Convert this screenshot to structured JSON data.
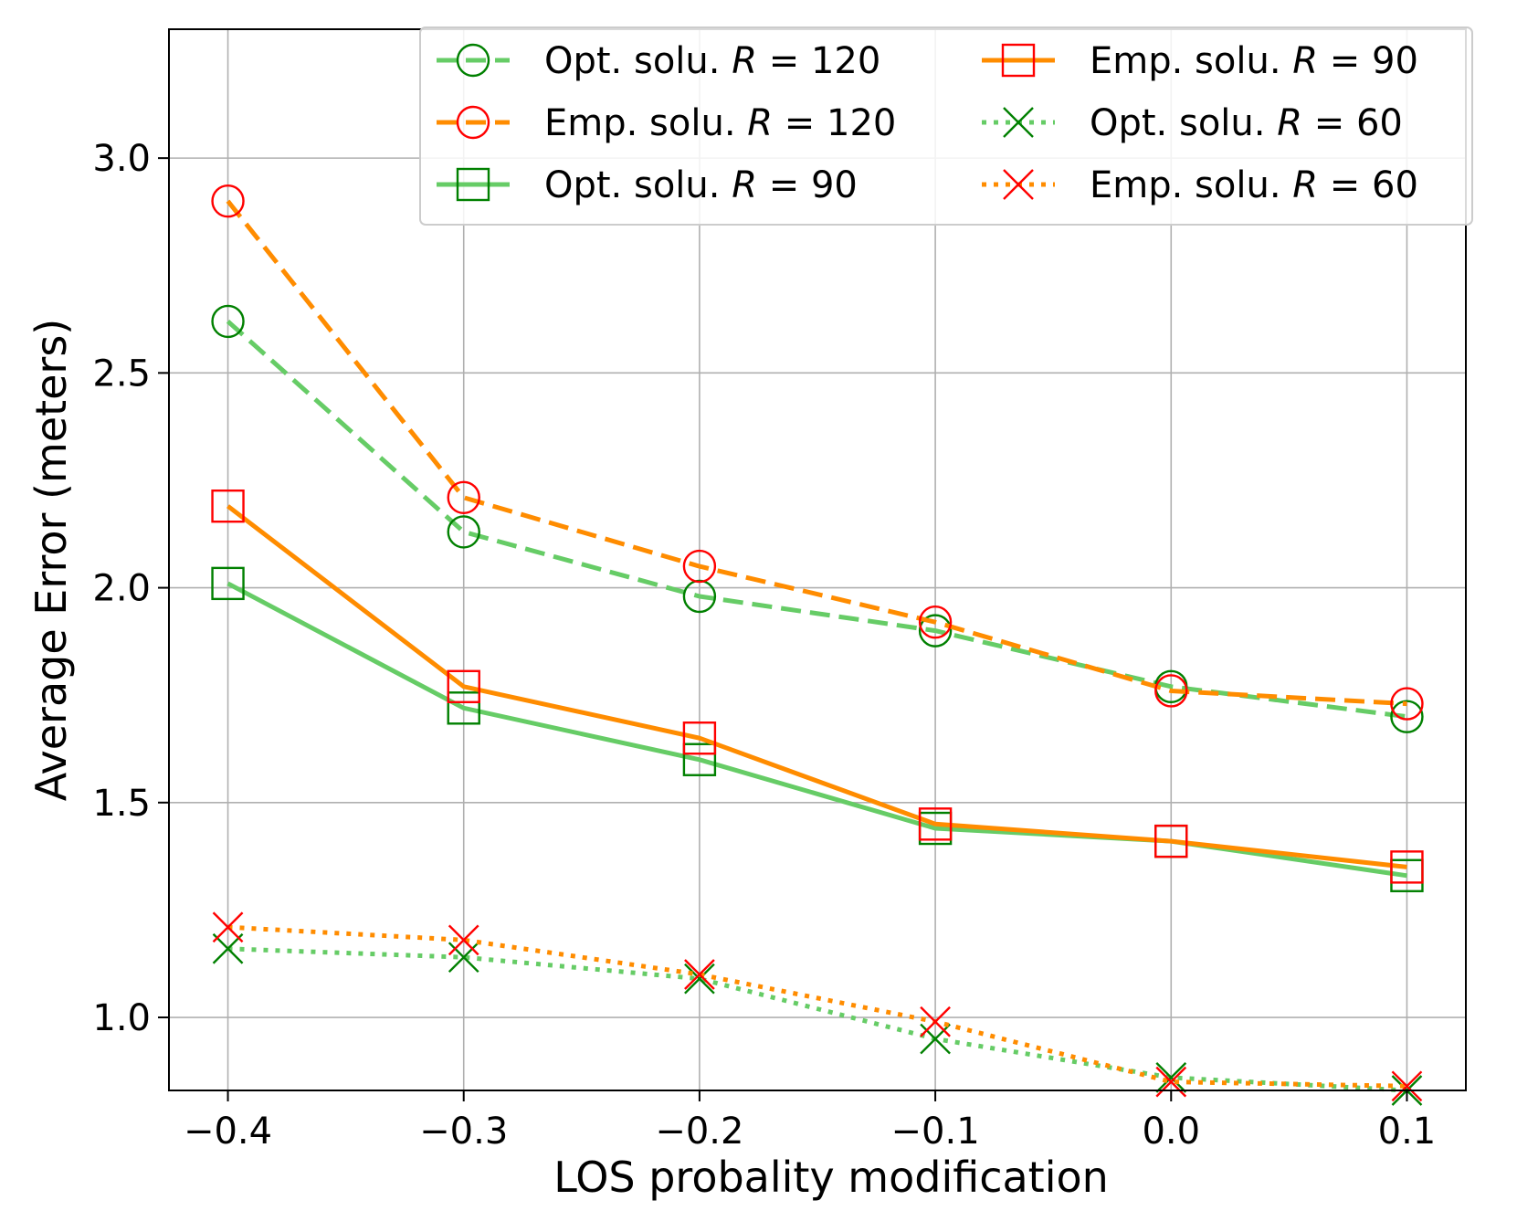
{
  "chart_data": {
    "type": "line",
    "title": "",
    "xlabel": "LOS probality modification",
    "ylabel": "Average Error (meters)",
    "x": [
      -0.4,
      -0.3,
      -0.2,
      -0.1,
      0.0,
      0.1
    ],
    "x_tick_labels": [
      "−0.4",
      "−0.3",
      "−0.2",
      "−0.1",
      "0.0",
      "0.1"
    ],
    "y_ticks": [
      1.0,
      1.5,
      2.0,
      2.5,
      3.0
    ],
    "y_tick_labels": [
      "1.0",
      "1.5",
      "2.0",
      "2.5",
      "3.0"
    ],
    "xlim": [
      -0.425,
      0.125
    ],
    "ylim": [
      0.83,
      3.3
    ],
    "grid": true,
    "legend_position": "top-right",
    "series": [
      {
        "name_prefix": "Opt. solu. ",
        "name_var": "R",
        "name_value": "120",
        "values": [
          2.62,
          2.13,
          1.98,
          1.9,
          1.77,
          1.7
        ],
        "line_color": "#66cc66",
        "marker_color": "#008000",
        "dash": "dashed",
        "marker": "circle"
      },
      {
        "name_prefix": "Emp. solu. ",
        "name_var": "R",
        "name_value": "120",
        "values": [
          2.9,
          2.21,
          2.05,
          1.92,
          1.76,
          1.73
        ],
        "line_color": "#ff8c00",
        "marker_color": "#ff0000",
        "dash": "dashed",
        "marker": "circle"
      },
      {
        "name_prefix": "Opt. solu. ",
        "name_var": "R",
        "name_value": "90",
        "values": [
          2.01,
          1.72,
          1.6,
          1.44,
          1.41,
          1.33
        ],
        "line_color": "#66cc66",
        "marker_color": "#008000",
        "dash": "solid",
        "marker": "square"
      },
      {
        "name_prefix": "Emp. solu. ",
        "name_var": "R",
        "name_value": "90",
        "values": [
          2.19,
          1.77,
          1.65,
          1.45,
          1.41,
          1.35
        ],
        "line_color": "#ff8c00",
        "marker_color": "#ff0000",
        "dash": "solid",
        "marker": "square"
      },
      {
        "name_prefix": "Opt. solu. ",
        "name_var": "R",
        "name_value": "60",
        "values": [
          1.16,
          1.14,
          1.09,
          0.95,
          0.86,
          0.83
        ],
        "line_color": "#66cc66",
        "marker_color": "#008000",
        "dash": "dotted",
        "marker": "x"
      },
      {
        "name_prefix": "Emp. solu. ",
        "name_var": "R",
        "name_value": "60",
        "values": [
          1.21,
          1.18,
          1.1,
          0.99,
          0.85,
          0.84
        ],
        "line_color": "#ff8c00",
        "marker_color": "#ff0000",
        "dash": "dotted",
        "marker": "x"
      }
    ]
  }
}
